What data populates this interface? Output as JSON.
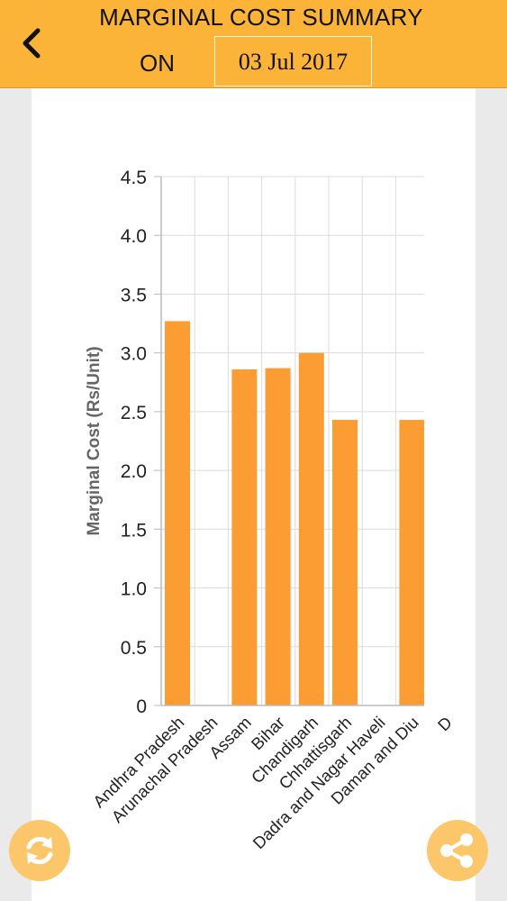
{
  "header": {
    "title": "MARGINAL COST SUMMARY",
    "on_label": "ON",
    "date": "03 Jul 2017",
    "back_icon": "chevron-left-icon",
    "background": "#fbb338"
  },
  "chart_data": {
    "type": "bar",
    "ylabel": "Marginal Cost (Rs/Unit)",
    "xlabel": "",
    "ylim": [
      0,
      4.5
    ],
    "yticks": [
      "0",
      "0.5",
      "1.0",
      "1.5",
      "2.0",
      "2.5",
      "3.0",
      "3.5",
      "4.0",
      "4.5"
    ],
    "categories": [
      "Andhra Pradesh",
      "Arunachal Pradesh",
      "Assam",
      "Bihar",
      "Chandigarh",
      "Chhattisgarh",
      "Dadra and Nagar Haveli",
      "Daman and Diu",
      "D"
    ],
    "values": [
      3.27,
      null,
      2.86,
      2.87,
      3.0,
      2.43,
      null,
      2.43,
      null
    ],
    "bar_color": "#fb9d32",
    "grid": true
  },
  "fabs": {
    "left_icon": "refresh-icon",
    "right_icon": "share-icon",
    "color": "#fbc76a"
  }
}
